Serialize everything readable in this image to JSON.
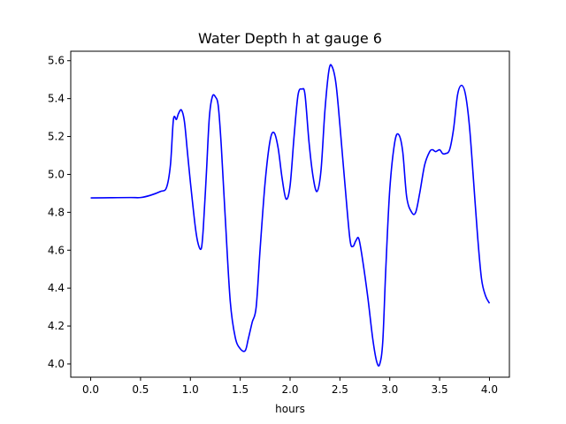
{
  "chart_data": {
    "type": "line",
    "title": "Water Depth h at gauge 6",
    "xlabel": "hours",
    "ylabel": "",
    "xlim": [
      -0.2,
      4.2
    ],
    "ylim": [
      3.93,
      5.65
    ],
    "xticks": [
      0.0,
      0.5,
      1.0,
      1.5,
      2.0,
      2.5,
      3.0,
      3.5,
      4.0
    ],
    "xtick_labels": [
      "0.0",
      "0.5",
      "1.0",
      "1.5",
      "2.0",
      "2.5",
      "3.0",
      "3.5",
      "4.0"
    ],
    "yticks": [
      4.0,
      4.2,
      4.4,
      4.6,
      4.8,
      5.0,
      5.2,
      5.4,
      5.6
    ],
    "ytick_labels": [
      "4.0",
      "4.2",
      "4.4",
      "4.6",
      "4.8",
      "5.0",
      "5.2",
      "5.4",
      "5.6"
    ],
    "grid": false,
    "series": [
      {
        "color": "#0000ff",
        "x": [
          0.0,
          0.2,
          0.4,
          0.5,
          0.6,
          0.7,
          0.76,
          0.8,
          0.83,
          0.86,
          0.88,
          0.91,
          0.94,
          0.97,
          1.0,
          1.05,
          1.08,
          1.11,
          1.13,
          1.16,
          1.19,
          1.22,
          1.25,
          1.28,
          1.31,
          1.35,
          1.4,
          1.45,
          1.5,
          1.55,
          1.58,
          1.62,
          1.66,
          1.7,
          1.75,
          1.8,
          1.84,
          1.88,
          1.92,
          1.96,
          2.0,
          2.04,
          2.08,
          2.12,
          2.15,
          2.19,
          2.23,
          2.27,
          2.31,
          2.35,
          2.39,
          2.42,
          2.46,
          2.5,
          2.55,
          2.6,
          2.63,
          2.66,
          2.69,
          2.73,
          2.78,
          2.83,
          2.87,
          2.9,
          2.93,
          2.96,
          3.0,
          3.05,
          3.09,
          3.13,
          3.17,
          3.22,
          3.26,
          3.3,
          3.35,
          3.4,
          3.43,
          3.46,
          3.5,
          3.53,
          3.56,
          3.6,
          3.64,
          3.68,
          3.72,
          3.76,
          3.8,
          3.84,
          3.88,
          3.92,
          3.96,
          4.0
        ],
        "y": [
          4.876,
          4.877,
          4.878,
          4.878,
          4.89,
          4.91,
          4.93,
          5.05,
          5.29,
          5.29,
          5.32,
          5.34,
          5.28,
          5.12,
          4.96,
          4.72,
          4.63,
          4.61,
          4.72,
          5.0,
          5.3,
          5.41,
          5.41,
          5.36,
          5.15,
          4.77,
          4.33,
          4.14,
          4.08,
          4.07,
          4.13,
          4.22,
          4.3,
          4.61,
          4.96,
          5.18,
          5.22,
          5.14,
          4.98,
          4.87,
          4.94,
          5.2,
          5.42,
          5.45,
          5.42,
          5.17,
          4.99,
          4.91,
          5.02,
          5.34,
          5.55,
          5.57,
          5.48,
          5.26,
          4.95,
          4.66,
          4.62,
          4.65,
          4.66,
          4.54,
          4.35,
          4.13,
          4.01,
          4.0,
          4.12,
          4.5,
          4.92,
          5.17,
          5.21,
          5.12,
          4.88,
          4.8,
          4.8,
          4.9,
          5.05,
          5.12,
          5.13,
          5.12,
          5.13,
          5.11,
          5.11,
          5.13,
          5.24,
          5.42,
          5.47,
          5.42,
          5.25,
          4.97,
          4.68,
          4.45,
          4.36,
          4.32
        ]
      }
    ]
  }
}
